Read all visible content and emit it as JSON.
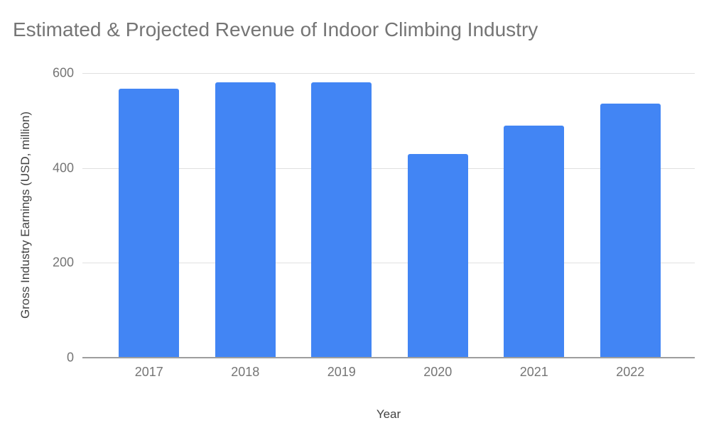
{
  "chart_data": {
    "type": "bar",
    "title": "Estimated & Projected Revenue of Indoor Climbing Industry",
    "xlabel": "Year",
    "ylabel": "Gross Industry Earnings (USD, million)",
    "categories": [
      "2017",
      "2018",
      "2019",
      "2020",
      "2021",
      "2022"
    ],
    "values": [
      567,
      580,
      580,
      430,
      490,
      535
    ],
    "ylim": [
      0,
      600
    ],
    "yticks": [
      0,
      200,
      400,
      600
    ],
    "grid": true,
    "legend_position": "none"
  },
  "theme": {
    "background": "#ffffff",
    "bar_color": "#4285f4",
    "grid_color": "#e0e0e0",
    "baseline_color": "#9e9e9e",
    "tick_label_color": "#757575",
    "title_color": "#757575",
    "axis_title_color": "#424242"
  }
}
